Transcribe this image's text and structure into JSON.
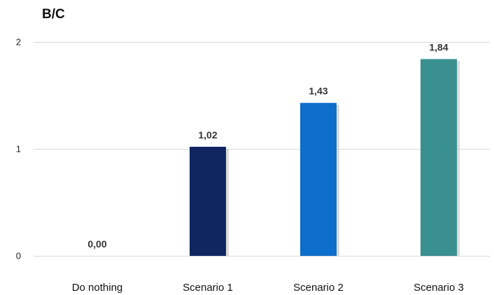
{
  "chart_data": {
    "type": "bar",
    "title": "B/C",
    "xlabel": "",
    "ylabel": "",
    "categories": [
      "Do nothing",
      "Scenario 1",
      "Scenario 2",
      "Scenario 3"
    ],
    "values": [
      0.0,
      1.02,
      1.43,
      1.84
    ],
    "value_labels": [
      "0,00",
      "1,02",
      "1,43",
      "1,84"
    ],
    "bar_colors": [
      "#1a2f6b",
      "#0f2660",
      "#0d6ecb",
      "#3a8f8f"
    ],
    "ylim": [
      0,
      2
    ],
    "yticks": [
      0,
      1,
      2
    ],
    "ytick_labels": [
      "0",
      "1",
      "2"
    ],
    "grid": true,
    "legend": "none"
  }
}
